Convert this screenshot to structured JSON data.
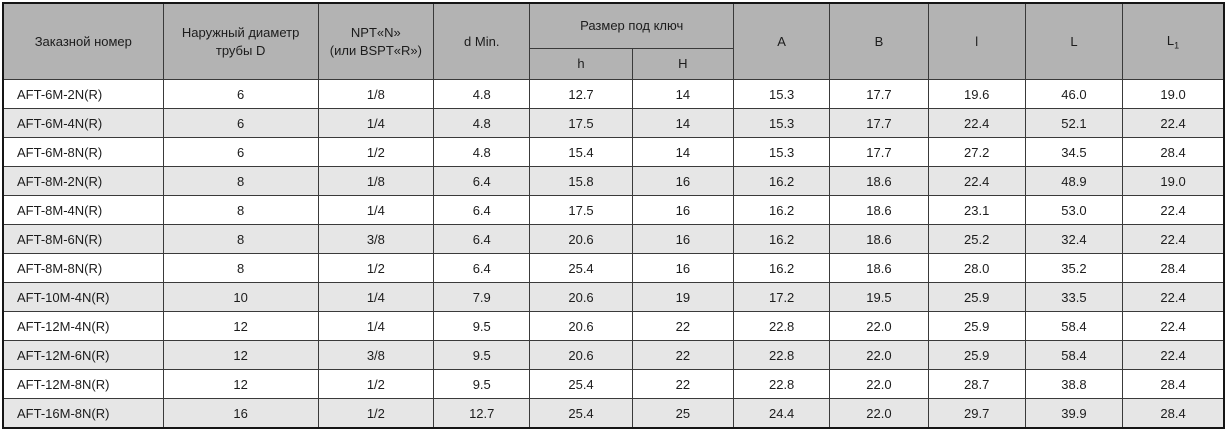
{
  "table": {
    "headers": {
      "order_number": "Заказной номер",
      "outer_diameter_line1": "Наружный диаметр",
      "outer_diameter_line2": "трубы D",
      "npt_line1": "NPT«N»",
      "npt_line2": "(или BSPT«R»)",
      "d_min": "d Min.",
      "wrench_size": "Размер под ключ",
      "h_small": "h",
      "h_big": "H",
      "col_a": "A",
      "col_b": "B",
      "col_l_small": "l",
      "col_l_big": "L",
      "col_l1_base": "L",
      "col_l1_sub": "1"
    },
    "rows": [
      [
        "AFT-6M-2N(R)",
        "6",
        "1/8",
        "4.8",
        "12.7",
        "14",
        "15.3",
        "17.7",
        "19.6",
        "46.0",
        "19.0"
      ],
      [
        "AFT-6M-4N(R)",
        "6",
        "1/4",
        "4.8",
        "17.5",
        "14",
        "15.3",
        "17.7",
        "22.4",
        "52.1",
        "22.4"
      ],
      [
        "AFT-6M-8N(R)",
        "6",
        "1/2",
        "4.8",
        "15.4",
        "14",
        "15.3",
        "17.7",
        "27.2",
        "34.5",
        "28.4"
      ],
      [
        "AFT-8M-2N(R)",
        "8",
        "1/8",
        "6.4",
        "15.8",
        "16",
        "16.2",
        "18.6",
        "22.4",
        "48.9",
        "19.0"
      ],
      [
        "AFT-8M-4N(R)",
        "8",
        "1/4",
        "6.4",
        "17.5",
        "16",
        "16.2",
        "18.6",
        "23.1",
        "53.0",
        "22.4"
      ],
      [
        "AFT-8M-6N(R)",
        "8",
        "3/8",
        "6.4",
        "20.6",
        "16",
        "16.2",
        "18.6",
        "25.2",
        "32.4",
        "22.4"
      ],
      [
        "AFT-8M-8N(R)",
        "8",
        "1/2",
        "6.4",
        "25.4",
        "16",
        "16.2",
        "18.6",
        "28.0",
        "35.2",
        "28.4"
      ],
      [
        "AFT-10M-4N(R)",
        "10",
        "1/4",
        "7.9",
        "20.6",
        "19",
        "17.2",
        "19.5",
        "25.9",
        "33.5",
        "22.4"
      ],
      [
        "AFT-12M-4N(R)",
        "12",
        "1/4",
        "9.5",
        "20.6",
        "22",
        "22.8",
        "22.0",
        "25.9",
        "58.4",
        "22.4"
      ],
      [
        "AFT-12M-6N(R)",
        "12",
        "3/8",
        "9.5",
        "20.6",
        "22",
        "22.8",
        "22.0",
        "25.9",
        "58.4",
        "22.4"
      ],
      [
        "AFT-12M-8N(R)",
        "12",
        "1/2",
        "9.5",
        "25.4",
        "22",
        "22.8",
        "22.0",
        "28.7",
        "38.8",
        "28.4"
      ],
      [
        "AFT-16M-8N(R)",
        "16",
        "1/2",
        "12.7",
        "25.4",
        "25",
        "24.4",
        "22.0",
        "29.7",
        "39.9",
        "28.4"
      ]
    ]
  },
  "colors": {
    "header_bg": "#b3b3b3",
    "stripe_bg": "#e6e6e6",
    "border": "#3a3a3a",
    "text": "#1c1c1c"
  }
}
